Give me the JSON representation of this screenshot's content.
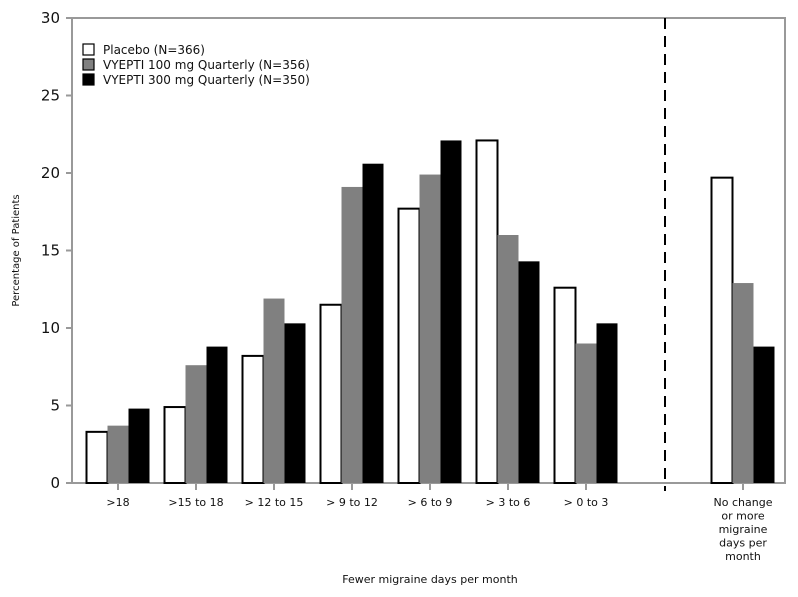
{
  "chart_data": {
    "type": "bar",
    "title": "",
    "xlabel": "Fewer migraine days per month",
    "ylabel": "Percentage of Patients",
    "ylim": [
      0,
      30
    ],
    "yticks": [
      0,
      5,
      10,
      15,
      20,
      25,
      30
    ],
    "grid": false,
    "legend_position": "top-left",
    "categories": [
      ">18",
      ">15 to 18",
      "> 12 to 15",
      "> 9 to 12",
      "> 6 to 9",
      "> 3 to 6",
      "> 0 to 3",
      "No change or more migraine days per month"
    ],
    "category_lines": [
      [
        ">18"
      ],
      [
        ">15 to 18"
      ],
      [
        "> 12 to 15"
      ],
      [
        "> 9 to 12"
      ],
      [
        "> 6 to 9"
      ],
      [
        "> 3 to 6"
      ],
      [
        "> 0 to 3"
      ],
      [
        "No change",
        "or more",
        "migraine",
        "days per",
        "month"
      ]
    ],
    "series": [
      {
        "name": "Placebo (N=366)",
        "color": "#ffffff",
        "values": [
          3.3,
          4.9,
          8.2,
          11.5,
          17.7,
          22.1,
          12.6,
          19.7
        ]
      },
      {
        "name": "VYEPTI 100 mg Quarterly (N=356)",
        "color": "#808080",
        "values": [
          3.7,
          7.6,
          11.9,
          19.1,
          19.9,
          16.0,
          9.0,
          12.9
        ]
      },
      {
        "name": "VYEPTI 300 mg Quarterly (N=350)",
        "color": "#000000",
        "values": [
          4.8,
          8.8,
          10.3,
          20.6,
          22.1,
          14.3,
          10.3,
          8.8
        ]
      }
    ]
  }
}
